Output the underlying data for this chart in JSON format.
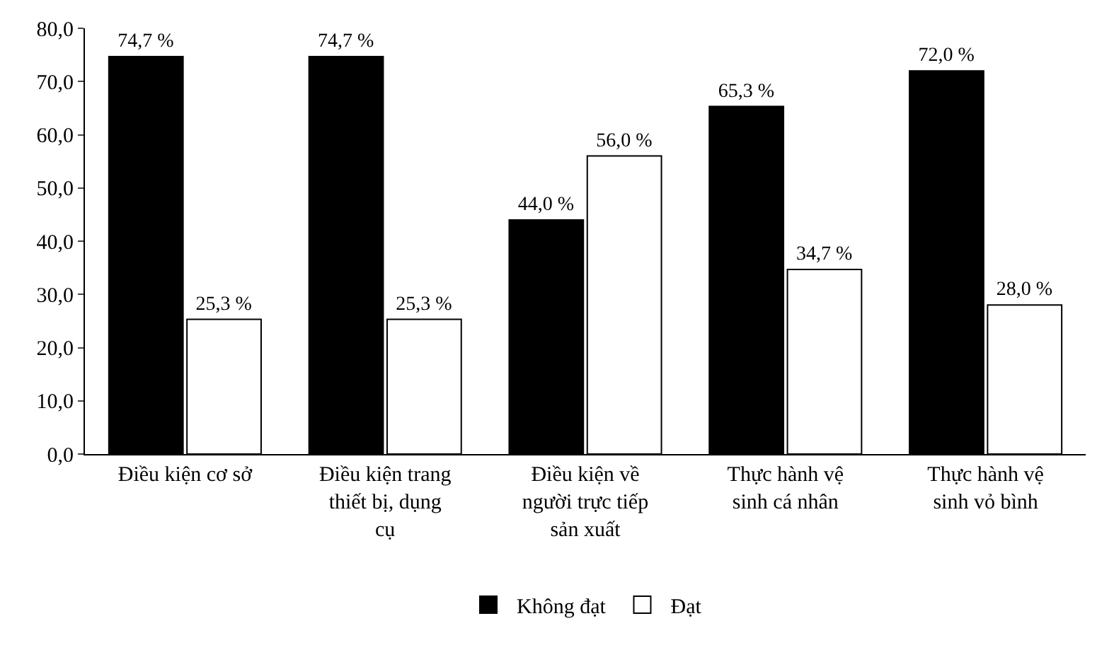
{
  "chart_data": {
    "type": "bar",
    "categories": [
      "Điều kiện cơ sở",
      "Điều kiện trang thiết bị, dụng cụ",
      "Điều kiện về người trực tiếp sản xuất",
      "Thực hành vệ sinh cá nhân",
      "Thực hành vệ sinh vỏ bình"
    ],
    "series": [
      {
        "name": "Không đạt",
        "color": "#000000",
        "values": [
          74.7,
          74.7,
          44.0,
          65.3,
          72.0
        ],
        "value_labels": [
          "74,7 %",
          "74,7 %",
          "44,0 %",
          "65,3 %",
          "72,0 %"
        ]
      },
      {
        "name": "Đạt",
        "color": "#ffffff",
        "values": [
          25.3,
          25.3,
          56.0,
          34.7,
          28.0
        ],
        "value_labels": [
          "25,3 %",
          "25,3 %",
          "56,0 %",
          "34,7 %",
          "28,0 %"
        ]
      }
    ],
    "ylim": [
      0,
      80
    ],
    "yticks": [
      {
        "value": 0,
        "label": "0,0"
      },
      {
        "value": 10,
        "label": "10,0"
      },
      {
        "value": 20,
        "label": "20,0"
      },
      {
        "value": 30,
        "label": "30,0"
      },
      {
        "value": 40,
        "label": "40,0"
      },
      {
        "value": 50,
        "label": "50,0"
      },
      {
        "value": 60,
        "label": "60,0"
      },
      {
        "value": 70,
        "label": "70,0"
      },
      {
        "value": 80,
        "label": "80,0"
      }
    ],
    "grid": false,
    "legend": "bottom"
  }
}
